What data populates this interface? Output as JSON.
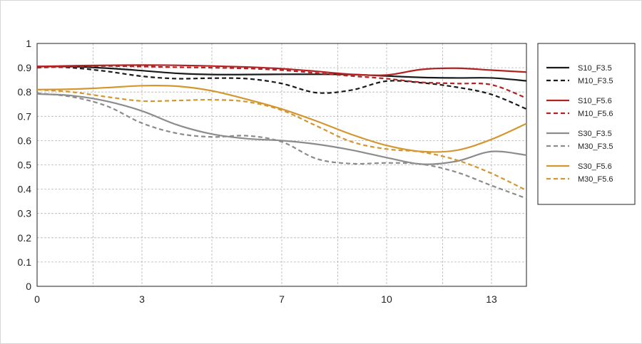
{
  "chart_data": {
    "type": "line",
    "title": "",
    "xlabel": "",
    "ylabel": "",
    "xlim": [
      0,
      14
    ],
    "ylim": [
      0,
      1
    ],
    "x_ticks": [
      0,
      3,
      7,
      10,
      13
    ],
    "x_tick_labels": [
      "0",
      "3",
      "7",
      "10",
      "13"
    ],
    "x_grid": [
      1.6,
      3,
      5,
      7,
      8.6,
      10,
      11.6,
      13
    ],
    "y_ticks": [
      0,
      0.1,
      0.2,
      0.3,
      0.4,
      0.5,
      0.6,
      0.7,
      0.8,
      0.9,
      1
    ],
    "y_tick_labels": [
      "0",
      "0.1",
      "0.2",
      "0.3",
      "0.4",
      "0.5",
      "0.6",
      "0.7",
      "0.8",
      "0.9",
      "1"
    ],
    "grid": true,
    "legend_position": "right",
    "series": [
      {
        "name": "S10_F3.5",
        "color": "#1a1a1a",
        "dash": "solid",
        "x": [
          0,
          1,
          2,
          3,
          4,
          5,
          6,
          7,
          8,
          9,
          10,
          11,
          12,
          13,
          14
        ],
        "y": [
          0.905,
          0.905,
          0.898,
          0.888,
          0.877,
          0.872,
          0.872,
          0.873,
          0.873,
          0.872,
          0.866,
          0.86,
          0.858,
          0.858,
          0.846
        ]
      },
      {
        "name": "M10_F3.5",
        "color": "#1a1a1a",
        "dash": "dashed",
        "x": [
          0,
          1,
          2,
          3,
          4,
          5,
          6,
          7,
          8,
          9,
          10,
          11,
          12,
          13,
          14
        ],
        "y": [
          0.905,
          0.9,
          0.885,
          0.865,
          0.855,
          0.857,
          0.855,
          0.835,
          0.797,
          0.808,
          0.845,
          0.838,
          0.82,
          0.79,
          0.73
        ]
      },
      {
        "name": "S10_F5.6",
        "color": "#b22222",
        "dash": "solid",
        "x": [
          0,
          1,
          2,
          3,
          4,
          5,
          6,
          7,
          8,
          9,
          10,
          11,
          12,
          13,
          14
        ],
        "y": [
          0.905,
          0.908,
          0.91,
          0.911,
          0.91,
          0.907,
          0.903,
          0.896,
          0.885,
          0.873,
          0.87,
          0.893,
          0.898,
          0.89,
          0.882
        ]
      },
      {
        "name": "M10_F5.6",
        "color": "#b22222",
        "dash": "dashed",
        "x": [
          0,
          1,
          2,
          3,
          4,
          5,
          6,
          7,
          8,
          9,
          10,
          11,
          12,
          13,
          14
        ],
        "y": [
          0.9,
          0.905,
          0.907,
          0.905,
          0.902,
          0.9,
          0.897,
          0.89,
          0.878,
          0.866,
          0.855,
          0.84,
          0.835,
          0.83,
          0.775
        ]
      },
      {
        "name": "S30_F3.5",
        "color": "#8c8c8c",
        "dash": "solid",
        "x": [
          0,
          1,
          2,
          3,
          4,
          5,
          6,
          7,
          8,
          9,
          10,
          11,
          12,
          13,
          14
        ],
        "y": [
          0.792,
          0.785,
          0.762,
          0.722,
          0.665,
          0.627,
          0.608,
          0.6,
          0.585,
          0.561,
          0.53,
          0.503,
          0.515,
          0.555,
          0.54
        ]
      },
      {
        "name": "M30_F3.5",
        "color": "#8c8c8c",
        "dash": "dashed",
        "x": [
          0,
          1,
          2,
          3,
          4,
          5,
          6,
          7,
          8,
          9,
          10,
          11,
          12,
          13,
          14
        ],
        "y": [
          0.795,
          0.78,
          0.742,
          0.672,
          0.63,
          0.615,
          0.62,
          0.595,
          0.525,
          0.505,
          0.508,
          0.503,
          0.47,
          0.415,
          0.362
        ]
      },
      {
        "name": "S30_F5.6",
        "color": "#d4962e",
        "dash": "solid",
        "x": [
          0,
          1,
          2,
          3,
          4,
          5,
          6,
          7,
          8,
          9,
          10,
          11,
          12,
          13,
          14
        ],
        "y": [
          0.81,
          0.812,
          0.818,
          0.826,
          0.824,
          0.805,
          0.77,
          0.73,
          0.68,
          0.625,
          0.58,
          0.555,
          0.56,
          0.605,
          0.67
        ]
      },
      {
        "name": "M30_F5.6",
        "color": "#d4962e",
        "dash": "dashed",
        "x": [
          0,
          1,
          2,
          3,
          4,
          5,
          6,
          7,
          8,
          9,
          10,
          11,
          12,
          13,
          14
        ],
        "y": [
          0.81,
          0.8,
          0.78,
          0.763,
          0.765,
          0.768,
          0.76,
          0.725,
          0.66,
          0.595,
          0.565,
          0.553,
          0.52,
          0.465,
          0.395
        ]
      }
    ]
  },
  "legend": {
    "groups": [
      [
        "S10_F3.5",
        "M10_F3.5"
      ],
      [
        "S10_F5.6",
        "M10_F5.6"
      ],
      [
        "S30_F3.5",
        "M30_F3.5"
      ],
      [
        "S30_F5.6",
        "M30_F5.6"
      ]
    ]
  }
}
